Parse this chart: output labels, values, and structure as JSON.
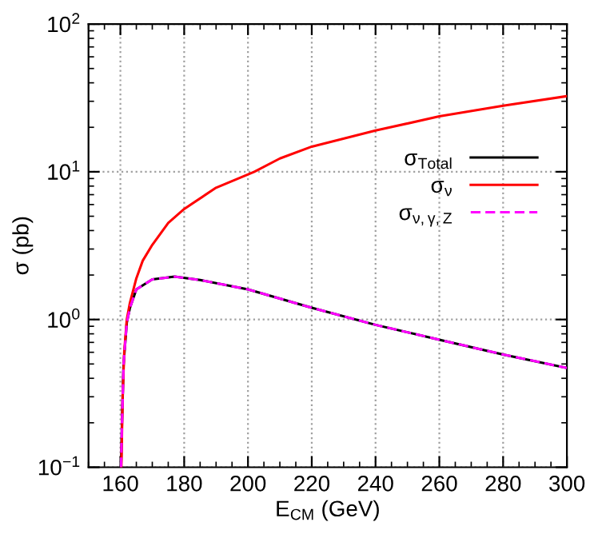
{
  "chart_data": {
    "type": "line",
    "xlabel": "E$_{CM}$ (GeV)",
    "ylabel": "σ (pb)",
    "log": "y",
    "grid": true,
    "legend": "right",
    "marker": "none",
    "xlim": [
      150,
      300
    ],
    "xticks": [
      160,
      180,
      200,
      220,
      240,
      260,
      280,
      300
    ],
    "ylim": [
      0.1,
      100
    ],
    "yticks": [
      {
        "value": 0.1,
        "label": "10$^{−1}$"
      },
      {
        "value": 1,
        "label": "10$^{0}$"
      },
      {
        "value": 10,
        "label": "10$^{1}$"
      },
      {
        "value": 100,
        "label": "10$^{2}$"
      }
    ],
    "series": [
      {
        "name": "σ$_{Total}$",
        "color": "#000000",
        "line_style": "solid",
        "x": [
          160.2,
          160.5,
          161,
          162,
          163,
          165,
          170,
          177,
          185,
          200,
          220,
          240,
          260,
          280,
          300
        ],
        "values": [
          0.1,
          0.2,
          0.5,
          0.95,
          1.2,
          1.6,
          1.87,
          1.95,
          1.85,
          1.6,
          1.2,
          0.92,
          0.73,
          0.58,
          0.47
        ]
      },
      {
        "name": "σ$_{ν}$",
        "color": "#ff0000",
        "line_style": "solid",
        "x": [
          160.3,
          160.7,
          161.2,
          162,
          163,
          165,
          167,
          170,
          175,
          180,
          190,
          202,
          210,
          220,
          240,
          260,
          280,
          300
        ],
        "values": [
          0.1,
          0.3,
          0.6,
          1.0,
          1.3,
          1.9,
          2.5,
          3.2,
          4.5,
          5.6,
          7.8,
          10,
          12.3,
          14.8,
          19,
          23.7,
          28,
          32.5
        ]
      },
      {
        "name": "σ$_{ν,γ,Z}$",
        "color": "#ff00ff",
        "line_style": "dashed",
        "x": [
          160.2,
          160.5,
          161,
          162,
          163,
          165,
          170,
          177,
          185,
          200,
          220,
          240,
          260,
          280,
          300
        ],
        "values": [
          0.1,
          0.2,
          0.5,
          0.95,
          1.2,
          1.6,
          1.87,
          1.95,
          1.85,
          1.6,
          1.2,
          0.92,
          0.73,
          0.58,
          0.47
        ]
      }
    ]
  }
}
